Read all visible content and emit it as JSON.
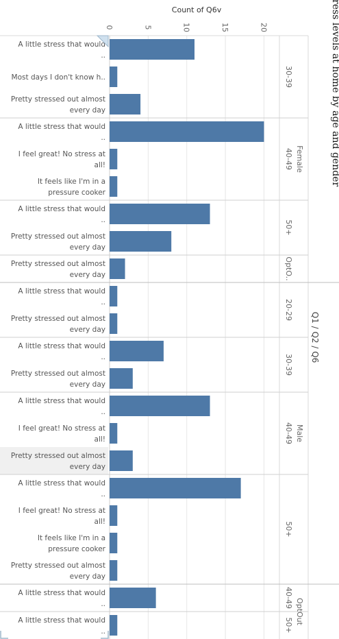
{
  "chart_data": {
    "type": "bar",
    "orientation": "horizontal",
    "title": "Stress levels at home by age and gender",
    "xlabel": "Count of Q6v",
    "filter_label": "Q1 / Q2 / Q6",
    "xlim": [
      0,
      22
    ],
    "xticks": [
      0,
      5,
      10,
      15,
      20
    ],
    "grid": true,
    "color": "#4e79a7",
    "rows": [
      {
        "gender": "Female",
        "age": "30-39",
        "answer": "A little stress that would ..",
        "value": 11
      },
      {
        "gender": "Female",
        "age": "30-39",
        "answer": "Most days I don't know h..",
        "value": 1
      },
      {
        "gender": "Female",
        "age": "30-39",
        "answer": "Pretty stressed out almost every day",
        "value": 4
      },
      {
        "gender": "Female",
        "age": "40-49",
        "answer": "A little stress that would ..",
        "value": 20
      },
      {
        "gender": "Female",
        "age": "40-49",
        "answer": "I feel great! No stress at all!",
        "value": 1
      },
      {
        "gender": "Female",
        "age": "40-49",
        "answer": "It feels like I'm in a pressure cooker",
        "value": 1
      },
      {
        "gender": "Female",
        "age": "50+",
        "answer": "A little stress that would ..",
        "value": 13
      },
      {
        "gender": "Female",
        "age": "50+",
        "answer": "Pretty stressed out almost every day",
        "value": 8
      },
      {
        "gender": "Female",
        "age": "OptO..",
        "answer": "Pretty stressed out almost every day",
        "value": 2
      },
      {
        "gender": "Male",
        "age": "20-29",
        "answer": "A little stress that would ..",
        "value": 1
      },
      {
        "gender": "Male",
        "age": "20-29",
        "answer": "Pretty stressed out almost every day",
        "value": 1
      },
      {
        "gender": "Male",
        "age": "30-39",
        "answer": "A little stress that would ..",
        "value": 7
      },
      {
        "gender": "Male",
        "age": "30-39",
        "answer": "Pretty stressed out almost every day",
        "value": 3
      },
      {
        "gender": "Male",
        "age": "40-49",
        "answer": "A little stress that would ..",
        "value": 13
      },
      {
        "gender": "Male",
        "age": "40-49",
        "answer": "I feel great! No stress at all!",
        "value": 1
      },
      {
        "gender": "Male",
        "age": "40-49",
        "answer": "Pretty stressed out almost every day",
        "value": 3
      },
      {
        "gender": "Male",
        "age": "50+",
        "answer": "A little stress that would ..",
        "value": 17
      },
      {
        "gender": "Male",
        "age": "50+",
        "answer": "I feel great! No stress at all!",
        "value": 1
      },
      {
        "gender": "Male",
        "age": "50+",
        "answer": "It feels like I'm in a pressure cooker",
        "value": 1
      },
      {
        "gender": "Male",
        "age": "50+",
        "answer": "Pretty stressed out almost every day",
        "value": 1
      },
      {
        "gender": "OptOut",
        "age": "40-49",
        "answer": "A little stress that would ..",
        "value": 6
      },
      {
        "gender": "OptOut",
        "age": "50+",
        "answer": "A little stress that would ..",
        "value": 1
      }
    ]
  }
}
